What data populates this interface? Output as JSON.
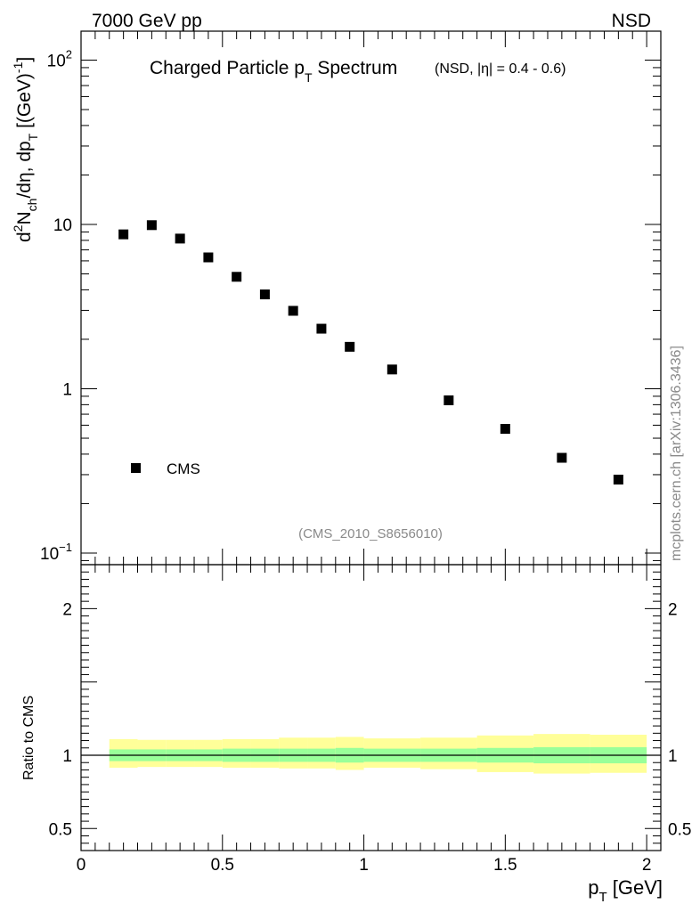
{
  "header": {
    "left": "7000 GeV pp",
    "right": "NSD"
  },
  "side_label": "mcplots.cern.ch [arXiv:1306.3436]",
  "chart_data": [
    {
      "type": "scatter",
      "title": "Charged Particle p",
      "title_sub": "T",
      "title_tail": "Spectrum",
      "subtitle": "(NSD, |η| = 0.4 - 0.6)",
      "ylabel_parts": [
        "d",
        "2",
        "N",
        "ch",
        "/dη, dp",
        "T",
        " [(GeV)",
        "-1",
        "]"
      ],
      "yscale": "log",
      "ylim": [
        0.085,
        150
      ],
      "yticks": [
        {
          "v": 100,
          "base": "10",
          "exp": "2"
        },
        {
          "v": 10,
          "base": "10",
          "exp": ""
        },
        {
          "v": 1,
          "base": "1",
          "exp": ""
        },
        {
          "v": 0.1,
          "base": "10",
          "exp": "−1"
        }
      ],
      "xlim": [
        0,
        2.05
      ],
      "series": [
        {
          "name": "CMS",
          "color": "#000000",
          "x": [
            0.15,
            0.25,
            0.35,
            0.45,
            0.55,
            0.65,
            0.75,
            0.85,
            0.95,
            1.1,
            1.3,
            1.5,
            1.7,
            1.9
          ],
          "y": [
            8.7,
            9.9,
            8.2,
            6.3,
            4.8,
            3.75,
            2.98,
            2.32,
            1.8,
            1.31,
            0.85,
            0.57,
            0.38,
            0.28
          ]
        }
      ],
      "legend_position": "bottom-left",
      "watermark": "(CMS_2010_S8656010)"
    },
    {
      "type": "area",
      "ylabel": "Ratio to CMS",
      "xlabel": "p",
      "xlabel_sub": "T",
      "xlabel_tail": " [GeV]",
      "ylim": [
        0.35,
        2.3
      ],
      "yticks": [
        {
          "v": 2,
          "label": "2"
        },
        {
          "v": 1,
          "label": "1"
        },
        {
          "v": 0.5,
          "label": "0.5"
        }
      ],
      "xlim": [
        0,
        2.05
      ],
      "xticks": [
        {
          "v": 0,
          "label": "0"
        },
        {
          "v": 0.5,
          "label": "0.5"
        },
        {
          "v": 1,
          "label": "1"
        },
        {
          "v": 1.5,
          "label": "1.5"
        },
        {
          "v": 2,
          "label": "2"
        }
      ],
      "reference_line": 1,
      "bands": {
        "edges": [
          0.1,
          0.2,
          0.3,
          0.4,
          0.5,
          0.6,
          0.7,
          0.8,
          0.9,
          1.0,
          1.2,
          1.4,
          1.6,
          1.8,
          2.0
        ],
        "inner_color": "#99ff99",
        "outer_color": "#ffff99",
        "inner_low": [
          0.96,
          0.96,
          0.96,
          0.96,
          0.955,
          0.955,
          0.955,
          0.955,
          0.95,
          0.955,
          0.955,
          0.95,
          0.945,
          0.945
        ],
        "inner_high": [
          1.04,
          1.04,
          1.04,
          1.04,
          1.045,
          1.045,
          1.045,
          1.045,
          1.05,
          1.045,
          1.045,
          1.05,
          1.055,
          1.055
        ],
        "outer_low": [
          0.915,
          0.92,
          0.92,
          0.92,
          0.915,
          0.915,
          0.91,
          0.91,
          0.9,
          0.915,
          0.905,
          0.885,
          0.875,
          0.88
        ],
        "outer_high": [
          1.11,
          1.105,
          1.105,
          1.105,
          1.11,
          1.11,
          1.12,
          1.12,
          1.125,
          1.115,
          1.12,
          1.135,
          1.145,
          1.14
        ]
      }
    }
  ]
}
